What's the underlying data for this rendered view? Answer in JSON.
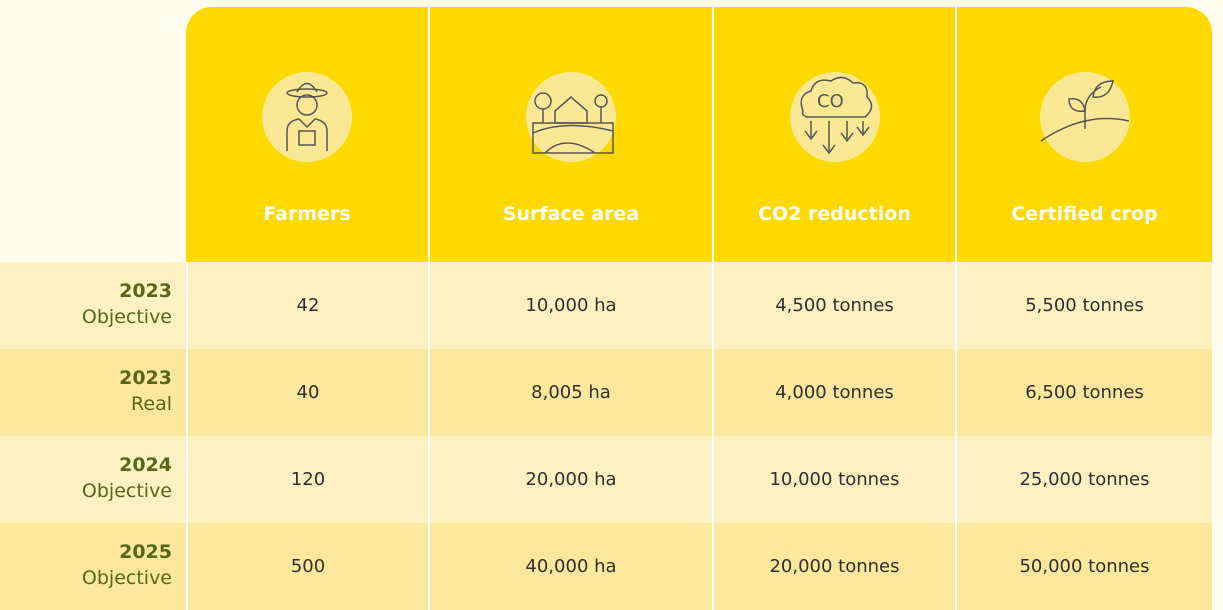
{
  "table": {
    "headers": [
      "Farmers",
      "Surface area",
      "CO2 reduction",
      "Certified crop"
    ],
    "rows": [
      {
        "year": "2023",
        "label": "Objective",
        "cells": [
          "42",
          "10,000 ha",
          "4,500 tonnes",
          "5,500 tonnes"
        ]
      },
      {
        "year": "2023",
        "label": "Real",
        "cells": [
          "40",
          "8,005 ha",
          "4,000 tonnes",
          "6,500 tonnes"
        ]
      },
      {
        "year": "2024",
        "label": "Objective",
        "cells": [
          "120",
          "20,000 ha",
          "10,000 tonnes",
          "25,000 tonnes"
        ]
      },
      {
        "year": "2025",
        "label": "Objective",
        "cells": [
          "500",
          "40,000 ha",
          "20,000 tonnes",
          "50,000 tonnes"
        ]
      }
    ]
  }
}
